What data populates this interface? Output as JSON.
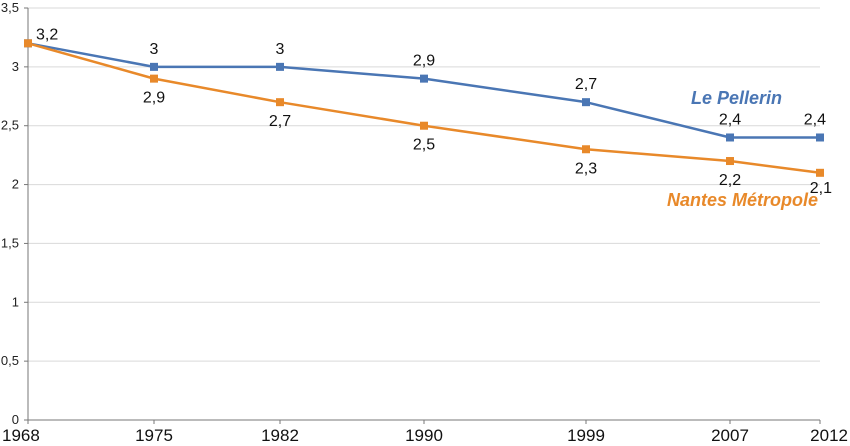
{
  "chart_data": {
    "type": "line",
    "title": "",
    "xlabel": "",
    "ylabel": "",
    "categories": [
      "1968",
      "1975",
      "1982",
      "1990",
      "1999",
      "2007",
      "2012"
    ],
    "x": [
      1968,
      1975,
      1982,
      1990,
      1999,
      2007,
      2012
    ],
    "ylim": [
      0,
      3.5
    ],
    "yticks": [
      "0",
      "0,5",
      "1",
      "1,5",
      "2",
      "2,5",
      "3",
      "3,5"
    ],
    "ytick_values": [
      0,
      0.5,
      1,
      1.5,
      2,
      2.5,
      3,
      3.5
    ],
    "grid": true,
    "series": [
      {
        "name": "Le Pellerin",
        "color": "#4a76b4",
        "values": [
          3.2,
          3,
          3,
          2.9,
          2.7,
          2.4,
          2.4
        ],
        "labels": [
          "3,2",
          "3",
          "3",
          "2,9",
          "2,7",
          "2,4",
          "2,4"
        ]
      },
      {
        "name": "Nantes Métropole",
        "color": "#e8892a",
        "values": [
          3.2,
          2.9,
          2.7,
          2.5,
          2.3,
          2.2,
          2.1
        ],
        "labels": [
          "",
          "2,9",
          "2,7",
          "2,5",
          "2,3",
          "2,2",
          "2,1"
        ]
      }
    ]
  }
}
